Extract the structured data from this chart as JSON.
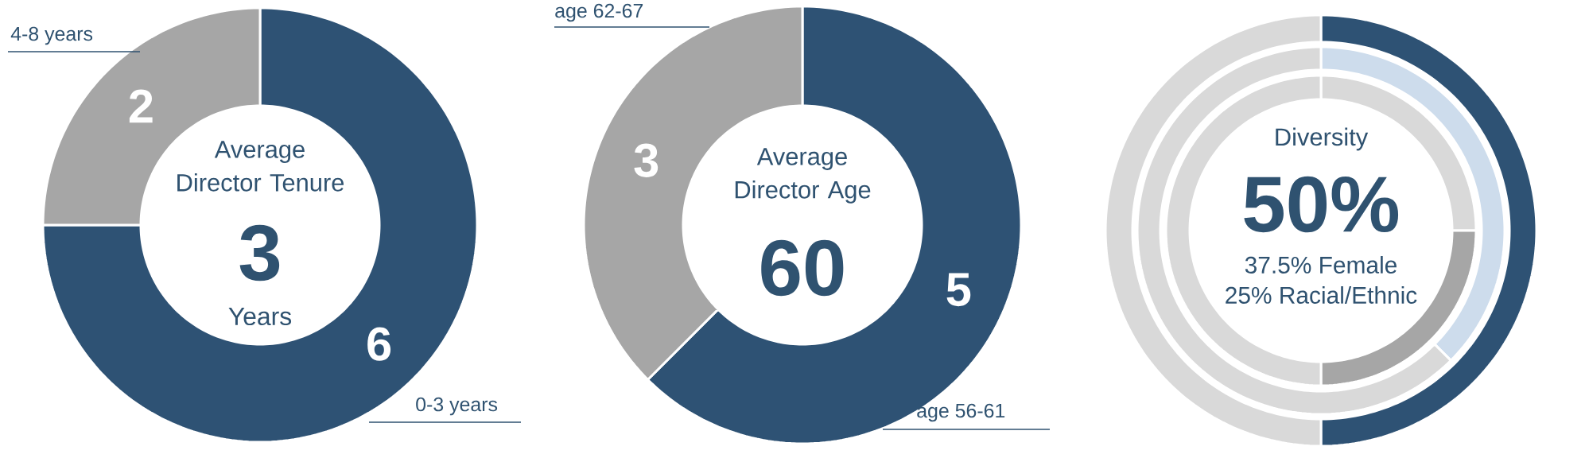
{
  "chart_data": [
    {
      "type": "donut",
      "title": "Average Director Tenure",
      "categories": [
        "0-3 years",
        "4-8 years"
      ],
      "values": [
        6,
        2
      ],
      "colors": [
        "#2e5274",
        "#a6a6a6"
      ],
      "data_labels": true,
      "annotations": [
        "3",
        "Years"
      ]
    },
    {
      "type": "donut",
      "title": "Average Director Age",
      "categories": [
        "age 56-61",
        "age 62-67"
      ],
      "values": [
        5,
        3
      ],
      "colors": [
        "#2e5274",
        "#a6a6a6"
      ],
      "data_labels": true,
      "annotations": [
        "60"
      ]
    },
    {
      "type": "donut",
      "title": "Diversity",
      "series": [
        {
          "values": [
            50,
            50
          ],
          "colors": [
            "#2e5274",
            "#d9d9d9"
          ]
        },
        {
          "values": [
            37.5,
            62.5
          ],
          "colors": [
            "#cddcec",
            "#d9d9d9"
          ]
        },
        {
          "values": [
            25,
            25,
            50
          ],
          "colors": [
            "#d9d9d9",
            "#a6a6a6",
            "#d9d9d9"
          ]
        }
      ],
      "annotations": [
        "50%",
        "37.5% Female",
        "25% Racial/Ethnic"
      ]
    }
  ]
}
